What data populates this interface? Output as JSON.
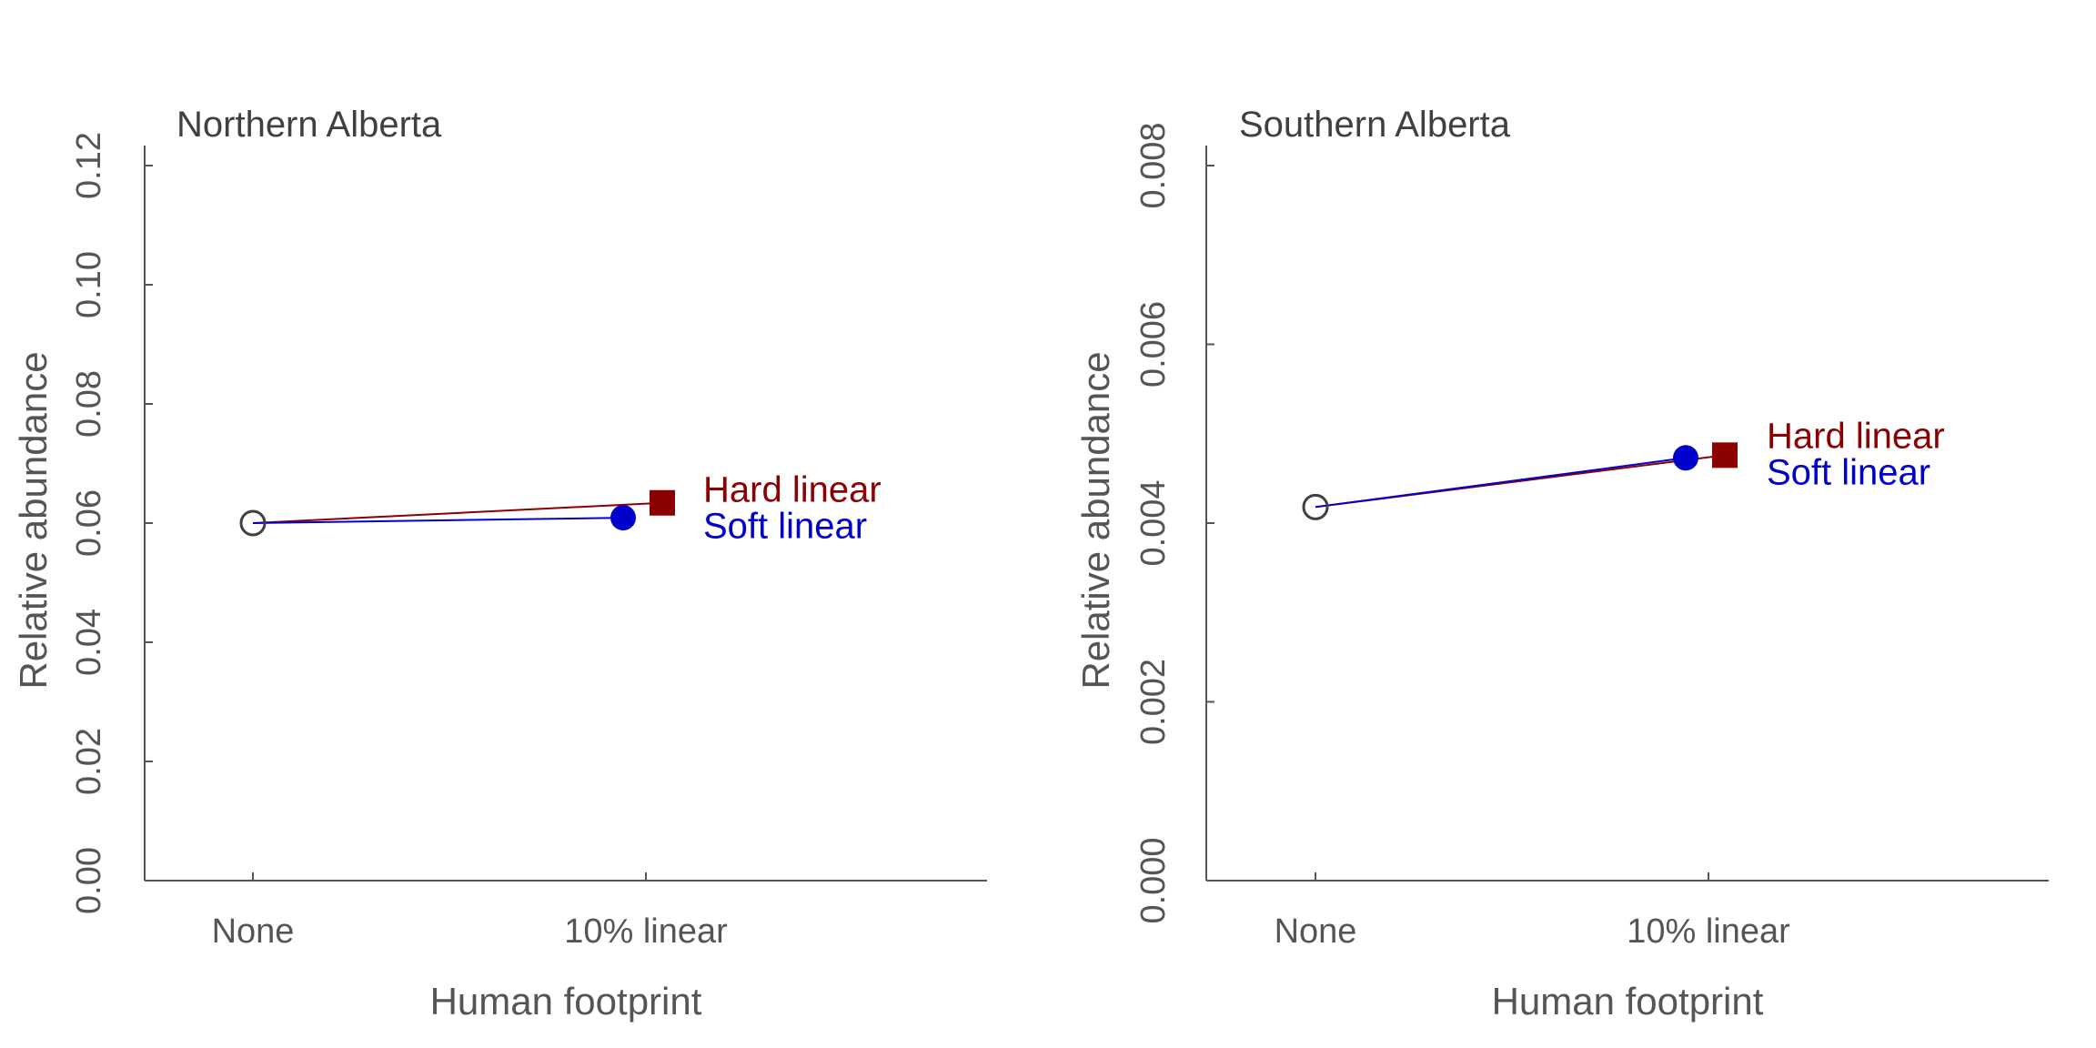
{
  "chart_data": [
    {
      "type": "scatter",
      "title": "Northern Alberta",
      "xlabel": "Human footprint",
      "ylabel": "Relative abundance",
      "categories": [
        "None",
        "10% linear"
      ],
      "ylim": [
        0,
        0.12
      ],
      "yticks": [
        0.0,
        0.02,
        0.04,
        0.06,
        0.08,
        0.1,
        0.12
      ],
      "ytick_labels": [
        "0.00",
        "0.02",
        "0.04",
        "0.06",
        "0.08",
        "0.10",
        "0.12"
      ],
      "grid": false,
      "baseline": {
        "category": "None",
        "value": 0.06,
        "marker": "open-circle",
        "color": "#404040"
      },
      "series": [
        {
          "name": "Hard linear",
          "category": "10% linear",
          "value": 0.0634,
          "marker": "square",
          "color": "#8B0000"
        },
        {
          "name": "Soft linear",
          "category": "10% linear",
          "value": 0.0609,
          "marker": "circle",
          "color": "#0000CD"
        }
      ]
    },
    {
      "type": "scatter",
      "title": "Southern Alberta",
      "xlabel": "Human footprint",
      "ylabel": "Relative abundance",
      "categories": [
        "None",
        "10% linear"
      ],
      "ylim": [
        0,
        0.008
      ],
      "yticks": [
        0.0,
        0.002,
        0.004,
        0.006,
        0.008
      ],
      "ytick_labels": [
        "0.000",
        "0.002",
        "0.004",
        "0.006",
        "0.008"
      ],
      "grid": false,
      "baseline": {
        "category": "None",
        "value": 0.00418,
        "marker": "open-circle",
        "color": "#404040"
      },
      "series": [
        {
          "name": "Hard linear",
          "category": "10% linear",
          "value": 0.00476,
          "marker": "square",
          "color": "#8B0000"
        },
        {
          "name": "Soft linear",
          "category": "10% linear",
          "value": 0.00473,
          "marker": "circle",
          "color": "#0000CD"
        }
      ]
    }
  ]
}
